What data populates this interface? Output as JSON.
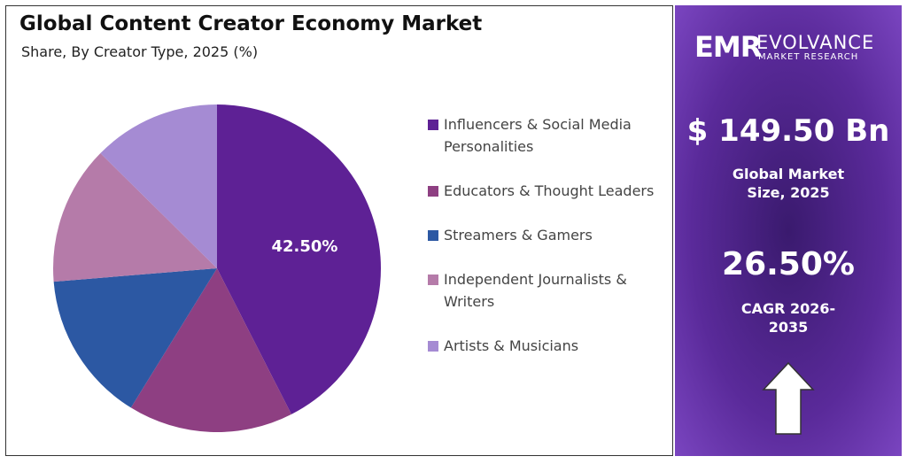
{
  "chart_data": {
    "type": "pie",
    "title": "Global Content Creator Economy Market",
    "subtitle": "Share, By Creator Type, 2025 (%)",
    "categories": [
      "Influencers & Social Media Personalities",
      "Educators & Thought Leaders",
      "Streamers & Gamers",
      "Independent Journalists & Writers",
      "Artists & Musicians"
    ],
    "values": [
      42.5,
      16.3,
      14.9,
      13.7,
      12.6
    ],
    "value_labels": [
      "42.50%",
      null,
      null,
      null,
      null
    ],
    "colors": [
      "#5e2195",
      "#8e3f82",
      "#2c58a3",
      "#b57ba9",
      "#a58bd3"
    ]
  },
  "panel": {
    "brand": "EMR",
    "company": "EVOLVANCE",
    "tagline": "MARKET RESEARCH",
    "market_size": "$ 149.50 Bn",
    "market_size_label": "Global Market Size, 2025",
    "cagr": "26.50%",
    "cagr_label": "CAGR 2026-2035"
  }
}
